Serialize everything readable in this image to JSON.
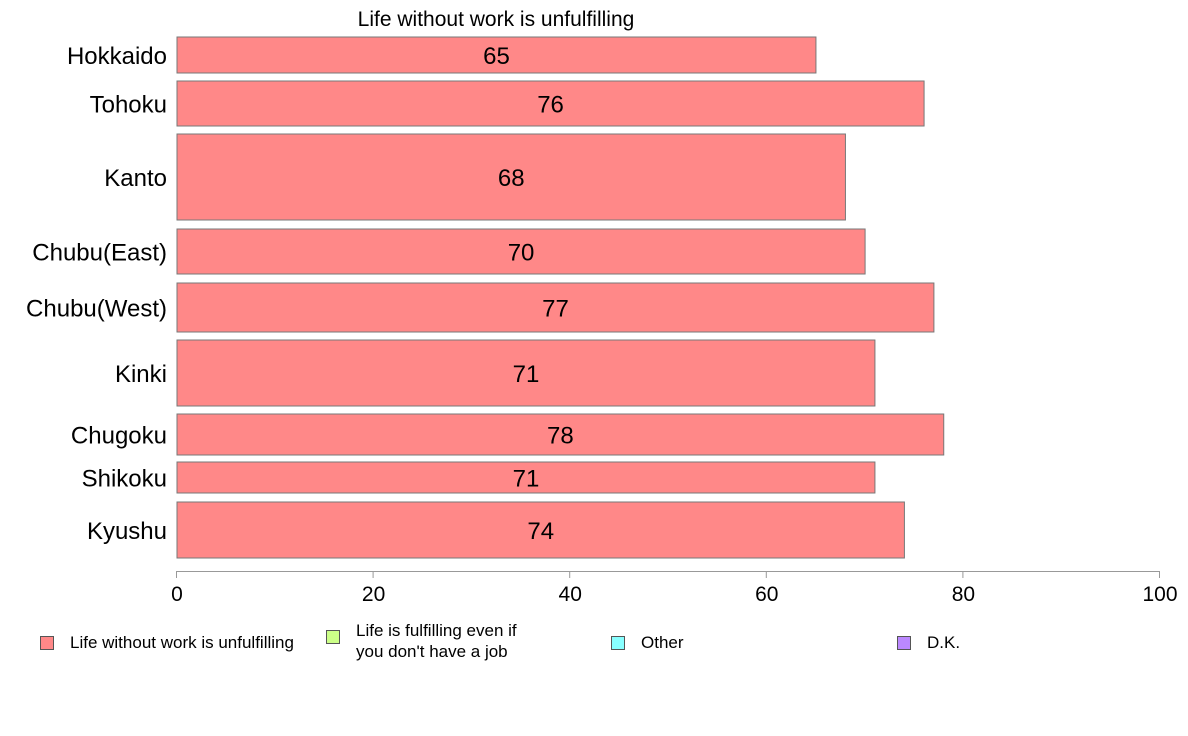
{
  "chart_data": {
    "type": "bar",
    "orientation": "horizontal",
    "title": "Life without work is unfulfilling",
    "categories": [
      "Hokkaido",
      "Tohoku",
      "Kanto",
      "Chubu(East)",
      "Chubu(West)",
      "Kinki",
      "Chugoku",
      "Shikoku",
      "Kyushu"
    ],
    "series": [
      {
        "name": "Life without work is unfulfilling",
        "color": "#ff8888",
        "values": [
          65,
          76,
          68,
          70,
          77,
          71,
          78,
          71,
          74
        ],
        "labels": [
          "65",
          "76",
          "68",
          "70",
          "77",
          "71",
          "78",
          "71",
          "74"
        ]
      }
    ],
    "xlim": [
      0,
      100
    ],
    "xticks": [
      0,
      20,
      40,
      60,
      80,
      100
    ],
    "xtick_labels": [
      "0",
      "20",
      "40",
      "60",
      "80",
      "100"
    ],
    "grid": false,
    "legend_position": "bottom",
    "legend": [
      {
        "label": "Life without work is unfulfilling",
        "color": "#ff8888"
      },
      {
        "label": "Life is fulfilling even if you don't have a job",
        "color": "#ccff88"
      },
      {
        "label": "Other",
        "color": "#88ffff"
      },
      {
        "label": "D.K.",
        "color": "#bb88ff"
      }
    ]
  }
}
